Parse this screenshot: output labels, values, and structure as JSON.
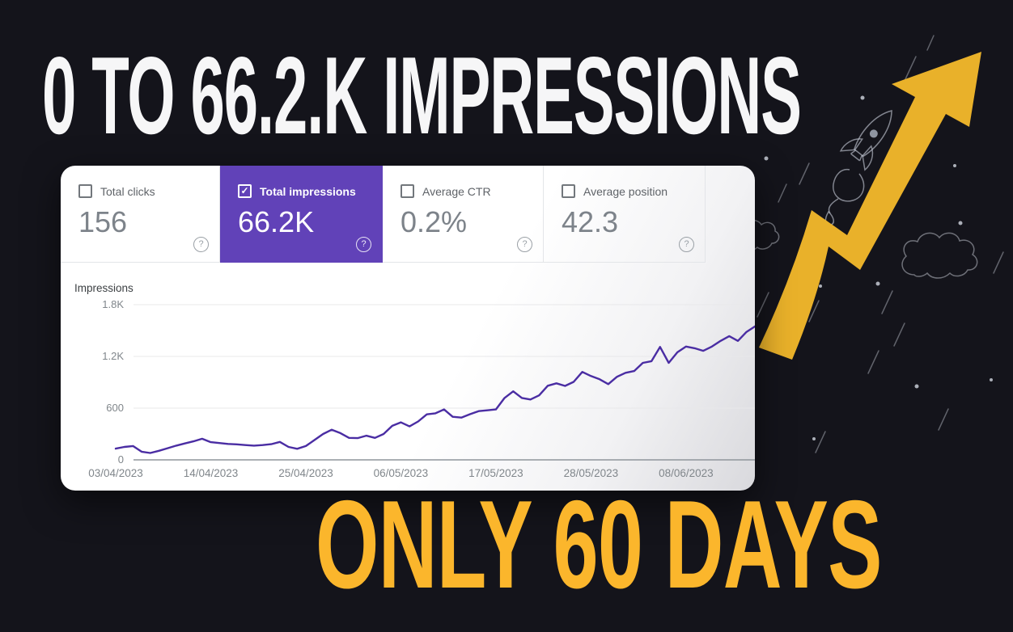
{
  "poster": {
    "headline_top": "0 TO 66.2.K IMPRESSIONS",
    "headline_bottom": "ONLY 60 DAYS"
  },
  "colors": {
    "background": "#14141B",
    "card": "#FFFFFF",
    "accent_yellow_arrow": "#E9B12A",
    "headline_yellow": "#FBB62C",
    "headline_white": "#F6F6F7",
    "tile_selected_purple": "#6142B8",
    "chart_line": "#4A2DA3",
    "value_gray": "#7D838A",
    "label_gray": "#5F6368",
    "tick_gray": "#80868B"
  },
  "icons": {
    "help": "?",
    "checkmark": "✓"
  },
  "metrics": {
    "clicks": {
      "label": "Total clicks",
      "value": "156",
      "checked": false
    },
    "impressions": {
      "label": "Total impressions",
      "value": "66.2K",
      "checked": true
    },
    "ctr": {
      "label": "Average CTR",
      "value": "0.2%",
      "checked": false
    },
    "position": {
      "label": "Average position",
      "value": "42.3",
      "checked": false
    }
  },
  "chart_data": {
    "type": "line",
    "title": "Impressions",
    "ylabel": "Impressions",
    "xlabel": "",
    "ylim": [
      0,
      1800
    ],
    "grid": true,
    "legend": false,
    "ytick_values": [
      1800,
      1200,
      600,
      0
    ],
    "ytick_labels": [
      "1.8K",
      "1.2K",
      "600",
      "0"
    ],
    "categories": [
      "03/04/2023",
      "14/04/2023",
      "25/04/2023",
      "06/05/2023",
      "17/05/2023",
      "28/05/2023",
      "08/06/2023"
    ],
    "category_day_index": [
      0,
      11,
      22,
      33,
      44,
      55,
      66
    ],
    "series": [
      {
        "name": "Total impressions",
        "color": "#4A2DA3",
        "values": [
          130,
          150,
          160,
          95,
          80,
          105,
          135,
          165,
          190,
          215,
          245,
          205,
          195,
          185,
          180,
          172,
          165,
          172,
          182,
          208,
          150,
          128,
          160,
          230,
          300,
          350,
          310,
          255,
          252,
          280,
          255,
          300,
          395,
          435,
          388,
          445,
          528,
          540,
          585,
          500,
          490,
          530,
          565,
          575,
          585,
          718,
          795,
          718,
          700,
          748,
          860,
          888,
          858,
          905,
          1020,
          972,
          935,
          878,
          963,
          1010,
          1030,
          1125,
          1145,
          1310,
          1125,
          1248,
          1314,
          1295,
          1265,
          1314,
          1380,
          1435,
          1380,
          1484,
          1550
        ]
      }
    ]
  }
}
